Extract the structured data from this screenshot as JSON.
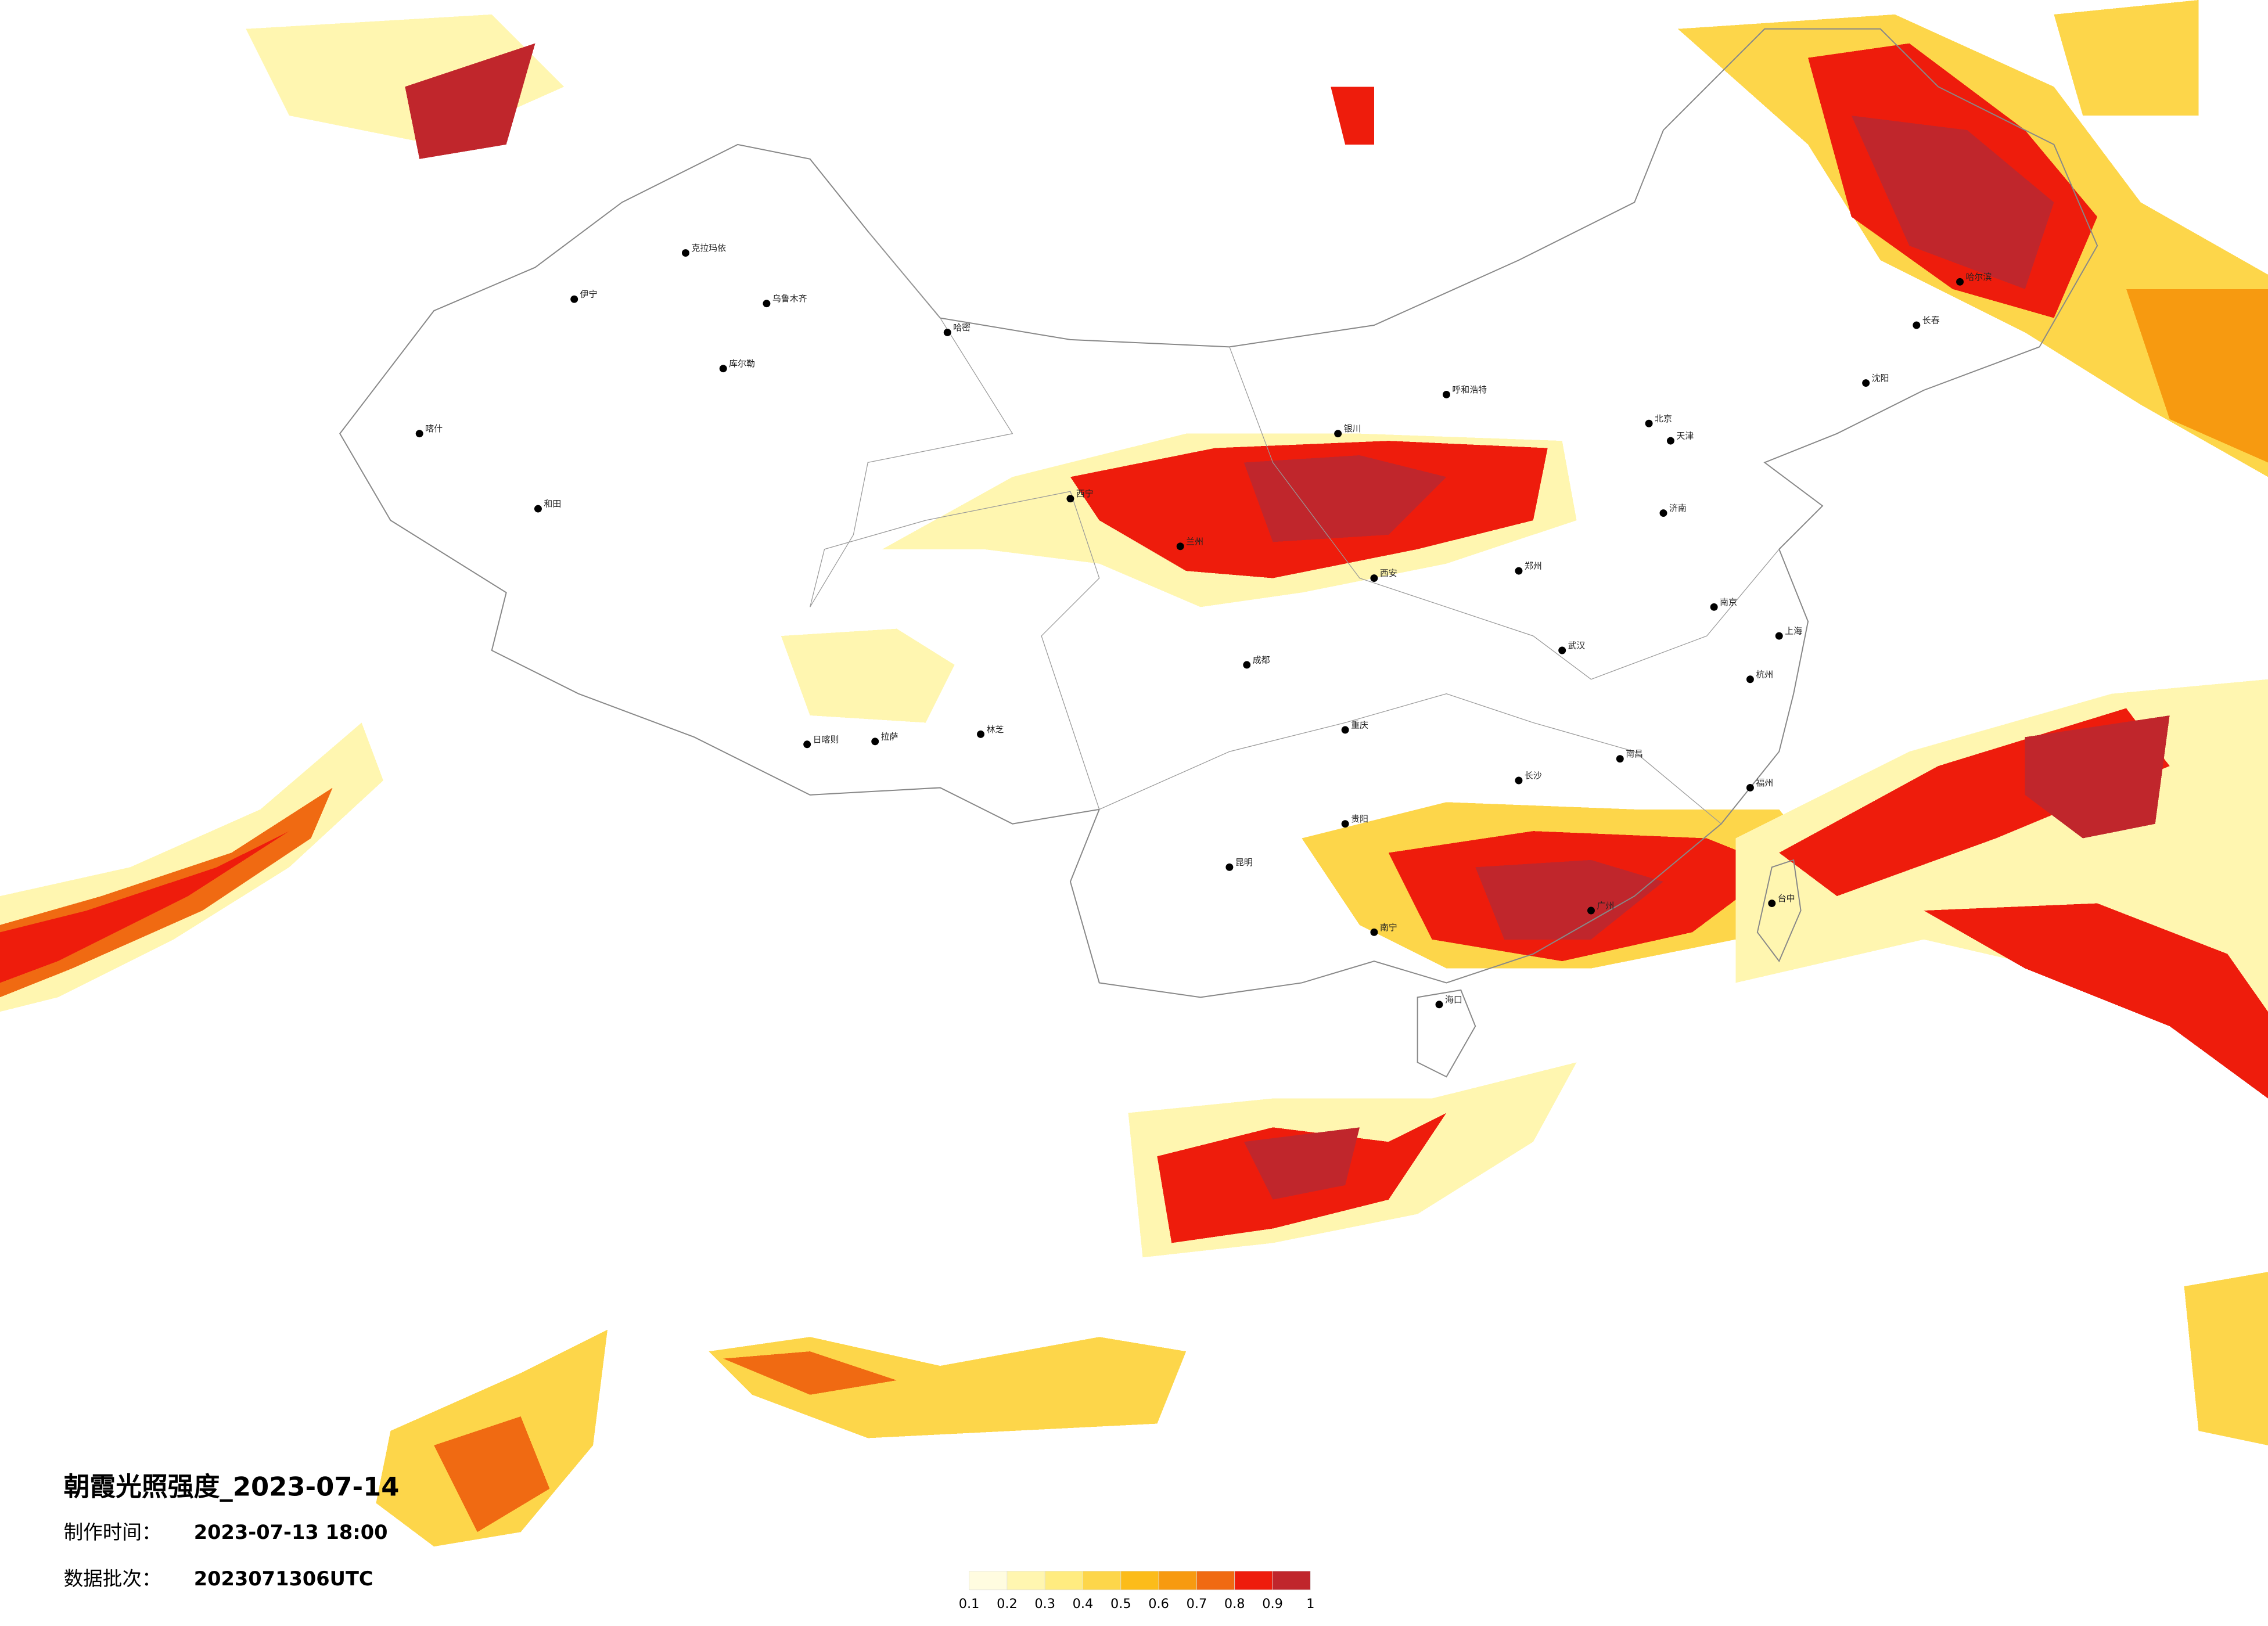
{
  "title": "朝霞光照强度_2023-07-14",
  "info": [
    {
      "label": "制作时间：",
      "value": "2023-07-13 18:00"
    },
    {
      "label": "数据批次：",
      "value": "2023071306UTC"
    }
  ],
  "legend": {
    "colors": [
      "#fffce0",
      "#fff6b0",
      "#ffec80",
      "#fdd64a",
      "#fcbc1a",
      "#f79a10",
      "#f06a12",
      "#ee1c0c",
      "#c0262c"
    ],
    "ticks": [
      0.1,
      0.2,
      0.3,
      0.4,
      0.5,
      0.6,
      0.7,
      0.8,
      0.9,
      1
    ]
  },
  "cities": [
    "克拉玛依",
    "乌鲁木齐",
    "伊宁",
    "喀什",
    "和田",
    "库尔勒",
    "哈密",
    "拉萨",
    "日喀则",
    "林芝",
    "西宁",
    "兰州",
    "银川",
    "呼和浩特",
    "北京",
    "天津",
    "哈尔滨",
    "长春",
    "沈阳",
    "济南",
    "郑州",
    "西安",
    "成都",
    "重庆",
    "武汉",
    "南京",
    "上海",
    "杭州",
    "长沙",
    "南昌",
    "福州",
    "广州",
    "南宁",
    "贵阳",
    "昆明",
    "海口",
    "台中"
  ]
}
